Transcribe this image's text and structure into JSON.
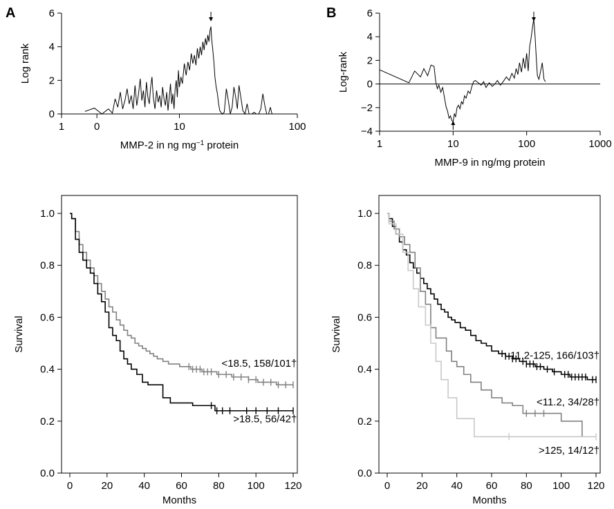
{
  "panel_labels": [
    "A",
    "B"
  ],
  "chart_data": [
    {
      "id": "A_top",
      "type": "line",
      "x_scale": "log",
      "xlabel_parts": [
        "MMP-2 in ng mg",
        "−1",
        " protein"
      ],
      "ylabel": "Log rank",
      "xlim": [
        1,
        100
      ],
      "ylim": [
        0,
        6
      ],
      "xticks": [
        1,
        10,
        100
      ],
      "xtick_labels": [
        "1",
        "10",
        "100"
      ],
      "minor_xticks": [
        1.995
      ],
      "minor_xtick_labels": [
        "0"
      ],
      "yticks": [
        0,
        2,
        4,
        6
      ],
      "ytick_labels": [
        "0",
        "2",
        "4",
        "6"
      ],
      "arrow_marks": [
        {
          "x": 18.5,
          "direction": "down"
        }
      ],
      "series": [
        {
          "x": [
            1.58,
            1.9,
            2.2,
            2.5,
            2.7,
            2.85,
            3.0,
            3.15,
            3.3,
            3.45,
            3.6,
            3.75,
            3.9,
            4.05,
            4.2,
            4.35,
            4.5,
            4.65,
            4.8,
            4.95,
            5.1,
            5.25,
            5.4,
            5.55,
            5.7,
            5.85,
            6.0,
            6.2,
            6.4,
            6.6,
            6.8,
            7.0,
            7.2,
            7.4,
            7.6,
            7.8,
            8.0,
            8.2,
            8.4,
            8.6,
            8.8,
            9.0,
            9.2,
            9.4,
            9.6,
            9.8,
            10.0,
            10.3,
            10.6,
            11.0,
            11.4,
            11.8,
            12.2,
            12.6,
            13.0,
            13.4,
            13.8,
            14.2,
            14.6,
            15.0,
            15.4,
            15.8,
            16.2,
            16.6,
            17.0,
            17.4,
            17.8,
            18.2,
            18.5,
            18.8,
            19.2,
            19.6,
            20.0,
            20.5,
            21.0,
            21.5,
            22.0,
            23.0,
            24.0,
            25.0,
            26.0,
            27.0,
            28.0,
            29.0,
            30.0,
            31.0,
            32.0,
            33.0,
            34.5,
            36.0,
            37.5,
            39.0,
            41.0,
            43.0,
            45.0,
            47.0,
            49.0,
            51.0,
            53.0,
            55.0,
            57.0,
            59.0,
            61.0,
            63.0
          ],
          "y": [
            0.15,
            0.35,
            0.0,
            0.3,
            0.05,
            0.9,
            0.4,
            1.3,
            0.3,
            0.8,
            1.5,
            0.6,
            1.1,
            0.3,
            1.7,
            0.5,
            1.2,
            2.1,
            0.8,
            1.4,
            0.4,
            1.9,
            1.0,
            0.6,
            1.6,
            2.2,
            1.0,
            0.3,
            1.4,
            0.7,
            1.1,
            0.4,
            1.6,
            0.9,
            0.5,
            1.3,
            0.2,
            1.0,
            1.8,
            0.6,
            1.2,
            0.3,
            1.5,
            2.0,
            1.0,
            2.6,
            1.6,
            2.2,
            1.8,
            3.0,
            2.3,
            3.1,
            2.6,
            3.6,
            3.0,
            3.5,
            2.9,
            3.9,
            3.3,
            4.0,
            3.5,
            4.3,
            3.8,
            4.5,
            4.1,
            4.7,
            4.3,
            5.0,
            5.2,
            4.4,
            3.8,
            3.1,
            2.2,
            1.6,
            1.2,
            0.6,
            0.2,
            0.0,
            0.1,
            1.5,
            0.8,
            0.0,
            0.4,
            1.6,
            1.0,
            0.3,
            1.7,
            1.1,
            0.2,
            0.0,
            0.6,
            0.0,
            0.0,
            0.1,
            0.0,
            0.0,
            0.3,
            1.2,
            0.5,
            0.0,
            0.0,
            0.4,
            0.0,
            0.0
          ]
        }
      ]
    },
    {
      "id": "B_top",
      "type": "line",
      "x_scale": "log",
      "xlabel_parts": [
        "MMP-9 in ng/mg protein"
      ],
      "ylabel": "Log-rank",
      "xlim": [
        1,
        1000
      ],
      "ylim": [
        -4,
        6
      ],
      "xticks": [
        1,
        10,
        100,
        1000
      ],
      "xtick_labels": [
        "1",
        "10",
        "100",
        "1000"
      ],
      "minor_xticks": [],
      "minor_xtick_labels": [],
      "yticks": [
        -4,
        -2,
        0,
        2,
        4,
        6
      ],
      "ytick_labels": [
        "−4",
        "−2",
        "0",
        "2",
        "4",
        "6"
      ],
      "zero_line": true,
      "arrow_marks": [
        {
          "x": 10,
          "direction": "up"
        },
        {
          "x": 125,
          "direction": "down"
        }
      ],
      "series": [
        {
          "x": [
            1.0,
            2.5,
            3.0,
            3.6,
            4.0,
            4.5,
            5.0,
            5.5,
            5.8,
            6.1,
            6.4,
            6.8,
            7.2,
            7.6,
            8.0,
            8.4,
            8.8,
            9.2,
            9.6,
            10.0,
            10.4,
            10.8,
            11.3,
            11.8,
            12.4,
            13.0,
            13.6,
            14.3,
            15.0,
            16.0,
            17.0,
            18.0,
            19.0,
            20.0,
            22.0,
            24.0,
            26.0,
            28.0,
            31.0,
            34.0,
            37.0,
            40.0,
            44.0,
            48.0,
            53.0,
            58.0,
            63.0,
            68.0,
            72.0,
            76.0,
            80.0,
            85.0,
            90.0,
            95.0,
            100.0,
            105.0,
            110.0,
            115.0,
            120.0,
            125.0,
            130.0,
            135.0,
            140.0,
            147.0,
            155.0,
            163.0,
            172.0,
            180.0
          ],
          "y": [
            1.2,
            0.1,
            1.1,
            0.6,
            1.3,
            0.7,
            1.6,
            1.5,
            0.2,
            -0.4,
            -0.1,
            -0.7,
            -0.3,
            -1.1,
            -1.9,
            -2.3,
            -2.9,
            -2.7,
            -3.1,
            -3.2,
            -2.5,
            -2.8,
            -2.0,
            -1.8,
            -2.1,
            -1.5,
            -1.7,
            -1.0,
            -1.2,
            -0.6,
            -0.8,
            -0.2,
            0.2,
            0.3,
            0.1,
            -0.1,
            0.2,
            -0.3,
            0.1,
            -0.2,
            0.0,
            0.3,
            -0.1,
            0.2,
            0.6,
            0.3,
            0.9,
            0.5,
            1.3,
            0.8,
            1.8,
            1.0,
            2.2,
            1.3,
            2.6,
            1.1,
            3.2,
            3.9,
            4.8,
            5.5,
            4.1,
            2.3,
            0.7,
            0.4,
            1.1,
            1.8,
            0.4,
            0.2
          ]
        }
      ]
    },
    {
      "id": "A_bottom",
      "type": "line",
      "step": true,
      "xlabel": "Months",
      "ylabel": "Survival",
      "xlim": [
        -5,
        125
      ],
      "ylim": [
        -0.03,
        1.07
      ],
      "xticks": [
        0,
        20,
        40,
        60,
        80,
        100,
        120
      ],
      "xtick_labels": [
        "0",
        "20",
        "40",
        "60",
        "80",
        "100",
        "120"
      ],
      "yticks": [
        0,
        0.2,
        0.4,
        0.6,
        0.8,
        1.0
      ],
      "ytick_labels": [
        "0.0",
        "0.2",
        "0.4",
        "0.6",
        "0.8",
        "1.0"
      ],
      "series": [
        {
          "color": "#808080",
          "label": "<18.5, 158/101†",
          "x": [
            1,
            3,
            5,
            7,
            9,
            11,
            13,
            15,
            17,
            19,
            21,
            23,
            25,
            27,
            29,
            31,
            33,
            35,
            37,
            39,
            41,
            43,
            45,
            47,
            50,
            53,
            56,
            59,
            62,
            65,
            68,
            71,
            75,
            79,
            83,
            87,
            91,
            96,
            101,
            106,
            111,
            116,
            120
          ],
          "y": [
            0.98,
            0.93,
            0.88,
            0.85,
            0.82,
            0.79,
            0.76,
            0.73,
            0.7,
            0.67,
            0.64,
            0.62,
            0.59,
            0.57,
            0.55,
            0.53,
            0.52,
            0.5,
            0.49,
            0.48,
            0.47,
            0.46,
            0.45,
            0.44,
            0.43,
            0.42,
            0.42,
            0.41,
            0.41,
            0.4,
            0.4,
            0.39,
            0.39,
            0.38,
            0.38,
            0.37,
            0.37,
            0.36,
            0.35,
            0.35,
            0.34,
            0.34,
            0.34
          ],
          "censored_x": [
            64,
            66,
            68,
            70,
            72,
            74,
            76,
            80,
            84,
            88,
            92,
            96,
            100,
            104,
            108,
            112,
            116,
            120
          ]
        },
        {
          "color": "#000000",
          "label": ">18.5, 56/42†",
          "x": [
            1,
            3,
            5,
            7,
            9,
            11,
            13,
            15,
            17,
            19,
            21,
            23,
            25,
            27,
            29,
            31,
            33,
            36,
            39,
            42,
            46,
            50,
            54,
            60,
            66,
            72,
            78,
            84,
            120
          ],
          "y": [
            0.98,
            0.9,
            0.85,
            0.82,
            0.79,
            0.77,
            0.73,
            0.69,
            0.66,
            0.62,
            0.56,
            0.53,
            0.51,
            0.47,
            0.44,
            0.42,
            0.4,
            0.38,
            0.35,
            0.34,
            0.34,
            0.29,
            0.27,
            0.27,
            0.26,
            0.26,
            0.24,
            0.24,
            0.24
          ],
          "censored_x": [
            76,
            79,
            82,
            86,
            95,
            100,
            106,
            112,
            120
          ]
        }
      ],
      "annotations": [
        {
          "text": "<18.5, 158/101†",
          "x": 122,
          "y": 0.41,
          "anchor": "end"
        },
        {
          "text": ">18.5, 56/42†",
          "x": 122,
          "y": 0.195,
          "anchor": "end"
        }
      ]
    },
    {
      "id": "B_bottom",
      "type": "line",
      "step": true,
      "xlabel": "Months",
      "ylabel": "Survival",
      "xlim": [
        -5,
        125
      ],
      "ylim": [
        -0.03,
        1.07
      ],
      "xticks": [
        0,
        20,
        40,
        60,
        80,
        100,
        120
      ],
      "xtick_labels": [
        "0",
        "20",
        "40",
        "60",
        "80",
        "100",
        "120"
      ],
      "yticks": [
        0,
        0.2,
        0.4,
        0.6,
        0.8,
        1.0
      ],
      "ytick_labels": [
        "0.0",
        "0.2",
        "0.4",
        "0.6",
        "0.8",
        "1.0"
      ],
      "series": [
        {
          "color": "#000000",
          "label": "11.2-125, 166/103†",
          "x": [
            1,
            3,
            5,
            7,
            9,
            11,
            13,
            15,
            17,
            19,
            21,
            23,
            25,
            27,
            29,
            31,
            33,
            35,
            37,
            39,
            42,
            45,
            48,
            51,
            54,
            57,
            60,
            64,
            68,
            72,
            76,
            80,
            85,
            90,
            95,
            100,
            105,
            110,
            115,
            120
          ],
          "y": [
            0.98,
            0.95,
            0.92,
            0.89,
            0.86,
            0.84,
            0.81,
            0.79,
            0.77,
            0.75,
            0.73,
            0.71,
            0.69,
            0.67,
            0.65,
            0.63,
            0.62,
            0.6,
            0.59,
            0.58,
            0.56,
            0.55,
            0.53,
            0.51,
            0.5,
            0.49,
            0.47,
            0.46,
            0.45,
            0.44,
            0.43,
            0.42,
            0.41,
            0.4,
            0.39,
            0.38,
            0.37,
            0.37,
            0.36,
            0.36
          ],
          "censored_x": [
            66,
            68,
            70,
            72,
            74,
            78,
            80,
            82,
            84,
            86,
            88,
            92,
            96,
            102,
            104,
            106,
            108,
            110,
            112,
            114,
            118,
            120
          ]
        },
        {
          "color": "#808080",
          "label": "<11.2, 34/28†",
          "x": [
            1,
            4,
            7,
            10,
            13,
            16,
            19,
            22,
            25,
            28,
            31,
            34,
            37,
            40,
            44,
            48,
            54,
            60,
            66,
            72,
            78,
            90,
            100,
            112
          ],
          "y": [
            0.97,
            0.94,
            0.91,
            0.88,
            0.85,
            0.79,
            0.7,
            0.65,
            0.56,
            0.52,
            0.52,
            0.47,
            0.43,
            0.41,
            0.38,
            0.35,
            0.32,
            0.29,
            0.27,
            0.26,
            0.23,
            0.23,
            0.2,
            0.14
          ],
          "censored_x": [
            80,
            85,
            90
          ]
        },
        {
          "color": "#c8c8c8",
          "label": ">125, 14/12†",
          "x": [
            1,
            5,
            9,
            12,
            15,
            18,
            22,
            25,
            28,
            31,
            35,
            40,
            45,
            50,
            120
          ],
          "y": [
            0.96,
            0.92,
            0.85,
            0.78,
            0.71,
            0.64,
            0.57,
            0.5,
            0.43,
            0.36,
            0.29,
            0.21,
            0.21,
            0.14,
            0.14
          ],
          "censored_x": [
            70,
            120
          ]
        }
      ],
      "annotations": [
        {
          "text": "11.2-125, 166/103†",
          "x": 122,
          "y": 0.44,
          "anchor": "end"
        },
        {
          "text": "<11.2, 34/28†",
          "x": 122,
          "y": 0.26,
          "anchor": "end"
        },
        {
          "text": ">125, 14/12†",
          "x": 122,
          "y": 0.075,
          "anchor": "end"
        }
      ]
    }
  ]
}
